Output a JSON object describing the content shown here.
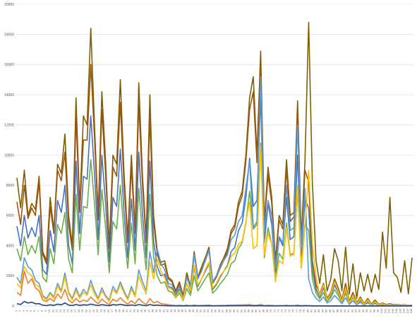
{
  "chart_data": {
    "type": "line",
    "title": "",
    "xlabel": "",
    "ylabel": "",
    "ylim": [
      0,
      20000
    ],
    "yticks": [
      0,
      2000,
      4000,
      6000,
      8000,
      10000,
      12000,
      14000,
      16000,
      18000,
      20000
    ],
    "xlim": [
      1,
      108
    ],
    "grid": "horizontal",
    "legend": "none",
    "series": [
      {
        "color": "#7f6000",
        "values": [
          8500,
          6500,
          9000,
          6000,
          6800,
          6400,
          8600,
          3600,
          3000,
          7200,
          5000,
          9400,
          8800,
          11400,
          6000,
          4000,
          13800,
          6500,
          12600,
          12000,
          18400,
          12000,
          6000,
          14200,
          9600,
          4000,
          10000,
          9400,
          15000,
          8800,
          4500,
          10000,
          5000,
          14800,
          8600,
          4500,
          14000,
          6000,
          3600,
          2900,
          3000,
          1900,
          1700,
          1000,
          1600,
          700,
          2200,
          1300,
          3600,
          1900,
          2600,
          3200,
          3900,
          1600,
          2000,
          2700,
          3200,
          3800,
          5000,
          5400,
          6900,
          7600,
          10000,
          13800,
          15200,
          10000,
          16900,
          5600,
          9200,
          7200,
          3000,
          6000,
          5400,
          9700,
          6000,
          6200,
          13600,
          4500,
          9600,
          18800,
          8200,
          3000,
          1500,
          3400,
          1000,
          1800,
          3800,
          3000,
          1000,
          3900,
          800,
          2800,
          500,
          2200,
          1000,
          2100,
          900,
          2100,
          1100,
          4900,
          2500,
          7200,
          2200,
          1900,
          900,
          3000,
          800,
          3200
        ]
      },
      {
        "color": "#9e5410",
        "values": [
          6900,
          5400,
          8000,
          5800,
          6500,
          6000,
          8200,
          3400,
          2800,
          6600,
          4800,
          9000,
          8300,
          10200,
          5400,
          3700,
          12500,
          6200,
          11000,
          11000,
          16000,
          11200,
          5700,
          13000,
          8800,
          3800,
          9200,
          8600,
          13500,
          8000,
          4200,
          9200,
          4800,
          13400,
          8000,
          4200,
          12500,
          5600,
          3400,
          2700,
          2800,
          1800,
          1600,
          900,
          1500,
          600,
          2000,
          1200,
          3400,
          1800,
          2400,
          3000,
          3700,
          1500,
          1900,
          2500,
          3000,
          3600,
          4800,
          5200,
          6600,
          7300,
          9600,
          13000,
          14200,
          9500,
          15800,
          5300,
          8700,
          6800,
          2800,
          5700,
          5100,
          9100,
          5600,
          5900,
          12800,
          4200,
          9000,
          8200,
          3000,
          1400,
          800,
          1500,
          500,
          900,
          1800,
          1200,
          400,
          1500,
          300,
          900,
          200,
          600,
          150,
          500,
          120,
          400,
          100,
          200,
          100,
          150,
          80,
          100,
          60,
          80,
          40,
          60
        ]
      },
      {
        "color": "#4472c4",
        "values": [
          5300,
          4000,
          6000,
          4500,
          5200,
          4600,
          6000,
          2400,
          2100,
          5000,
          3600,
          7000,
          6200,
          8000,
          4000,
          2800,
          9600,
          4800,
          8600,
          8400,
          12600,
          8800,
          4400,
          10000,
          6800,
          2900,
          7200,
          6600,
          10400,
          6200,
          3200,
          7100,
          3700,
          10200,
          6100,
          3200,
          9600,
          4300,
          2600,
          2000,
          2100,
          1300,
          1200,
          700,
          1100,
          450,
          1500,
          900,
          2600,
          1300,
          1800,
          2300,
          2800,
          1100,
          1400,
          1900,
          2300,
          2700,
          3600,
          3900,
          5000,
          5500,
          7200,
          9800,
          6600,
          7000,
          14000,
          4200,
          6800,
          5400,
          2200,
          4500,
          4000,
          7200,
          4400,
          4600,
          10000,
          3300,
          7100,
          6500,
          2400,
          1100,
          600,
          1200,
          400,
          700,
          1400,
          900,
          300,
          1100,
          200,
          700,
          150,
          450,
          100,
          350,
          90,
          280,
          70,
          150,
          70,
          110,
          60,
          70,
          40,
          60,
          30,
          40
        ]
      },
      {
        "color": "#70ad47",
        "values": [
          3800,
          3000,
          4600,
          3400,
          4000,
          3500,
          4600,
          1900,
          1600,
          3800,
          2800,
          5400,
          4800,
          6200,
          3100,
          2200,
          7400,
          3700,
          6600,
          6500,
          9700,
          6800,
          3400,
          7700,
          5200,
          2200,
          5600,
          5100,
          8000,
          4800,
          2500,
          5500,
          2800,
          7800,
          4700,
          2400,
          7400,
          3300,
          2000,
          1500,
          1600,
          1000,
          900,
          550,
          850,
          350,
          1150,
          700,
          2000,
          1000,
          1400,
          1800,
          2200,
          850,
          1100,
          1450,
          1750,
          2100,
          2800,
          3000,
          3800,
          4200,
          5500,
          7600,
          5100,
          5400,
          10800,
          3200,
          5200,
          4100,
          1700,
          3500,
          3100,
          5500,
          3400,
          3500,
          7700,
          2500,
          5400,
          5000,
          1800,
          850,
          450,
          900,
          300,
          550,
          1100,
          700,
          230,
          850,
          150,
          550,
          110,
          350,
          80,
          270,
          70,
          210,
          50,
          110,
          50,
          80,
          40,
          50,
          30,
          45,
          20,
          30
        ]
      },
      {
        "color": "#5b9bd5",
        "values": [
          1900,
          1500,
          3200,
          2600,
          2400,
          1700,
          1500,
          700,
          500,
          900,
          600,
          1500,
          1000,
          2200,
          900,
          500,
          1200,
          600,
          1100,
          800,
          1700,
          1000,
          500,
          1200,
          700,
          400,
          1300,
          900,
          1600,
          1000,
          500,
          1300,
          700,
          2400,
          1600,
          1000,
          3600,
          2200,
          3800,
          2800,
          2400,
          1500,
          1400,
          800,
          1300,
          500,
          1900,
          1200,
          3400,
          1800,
          2300,
          3000,
          3700,
          1600,
          2000,
          2600,
          3000,
          3400,
          4400,
          4700,
          5600,
          6000,
          7800,
          9600,
          5200,
          5600,
          15200,
          5000,
          7000,
          6000,
          2500,
          4600,
          4200,
          8000,
          5000,
          5200,
          12000,
          3800,
          7800,
          1800,
          900,
          500,
          300,
          600,
          200,
          350,
          700,
          450,
          150,
          550,
          100,
          350,
          80,
          250,
          60,
          200,
          50,
          160,
          40,
          90,
          40,
          60,
          30,
          40,
          20,
          30,
          15,
          20
        ]
      },
      {
        "color": "#ffc000",
        "values": [
          1500,
          1200,
          2600,
          2200,
          2000,
          1400,
          1300,
          600,
          400,
          800,
          500,
          1300,
          900,
          1900,
          800,
          400,
          1000,
          500,
          900,
          700,
          1400,
          800,
          400,
          1000,
          600,
          300,
          1100,
          800,
          1400,
          850,
          400,
          1100,
          600,
          2000,
          1300,
          800,
          2900,
          1800,
          3100,
          2300,
          1900,
          1200,
          1100,
          600,
          1000,
          400,
          1500,
          1000,
          2700,
          1400,
          1800,
          2400,
          2900,
          1200,
          1500,
          2000,
          2300,
          2600,
          3300,
          3500,
          4100,
          4300,
          5600,
          6900,
          3800,
          4000,
          10600,
          3400,
          4800,
          4100,
          1600,
          3000,
          2800,
          5200,
          3300,
          3400,
          8000,
          2500,
          5200,
          9000,
          4200,
          1900,
          700,
          1400,
          400,
          800,
          1600,
          1000,
          300,
          1200,
          200,
          700,
          150,
          500,
          100,
          400,
          80,
          300,
          60,
          150,
          60,
          100,
          40,
          60,
          30,
          50,
          20,
          30
        ]
      },
      {
        "color": "#ed7d31",
        "values": [
          900,
          700,
          2300,
          1500,
          1800,
          1200,
          1000,
          400,
          300,
          500,
          300,
          800,
          500,
          1100,
          400,
          200,
          500,
          250,
          400,
          300,
          600,
          350,
          150,
          450,
          250,
          100,
          450,
          300,
          550,
          300,
          120,
          350,
          150,
          500,
          250,
          100,
          500,
          200,
          300,
          150,
          120,
          80,
          60,
          30,
          50,
          20,
          50,
          30,
          60,
          30,
          40,
          50,
          60,
          20,
          30,
          40,
          40,
          50,
          60,
          60,
          70,
          70,
          80,
          90,
          50,
          50,
          100,
          30,
          50,
          40,
          20,
          30,
          30,
          50,
          30,
          30,
          60,
          20,
          40,
          30,
          20,
          10,
          10,
          10,
          5,
          5,
          10,
          5,
          5,
          5,
          5,
          5,
          5,
          5,
          5,
          5,
          5,
          5,
          5,
          5,
          5,
          5,
          5,
          5,
          5,
          5,
          5,
          5
        ]
      },
      {
        "color": "#264478",
        "values": [
          150,
          100,
          300,
          200,
          250,
          150,
          150,
          50,
          30,
          80,
          40,
          120,
          80,
          200,
          60,
          30,
          100,
          40,
          80,
          60,
          120,
          70,
          30,
          90,
          50,
          20,
          90,
          60,
          110,
          60,
          25,
          70,
          30,
          100,
          50,
          20,
          100,
          40,
          60,
          30,
          25,
          15,
          12,
          6,
          10,
          4,
          10,
          6,
          12,
          6,
          8,
          10,
          12,
          4,
          6,
          8,
          8,
          10,
          12,
          12,
          14,
          14,
          16,
          18,
          10,
          10,
          20,
          6,
          10,
          8,
          4,
          6,
          6,
          10,
          6,
          6,
          12,
          4,
          8,
          6,
          4,
          2,
          2,
          2,
          1,
          1,
          2,
          1,
          1,
          1,
          1,
          1,
          1,
          1,
          1,
          1,
          1,
          1,
          1,
          1,
          1,
          1,
          1,
          1,
          1,
          1,
          1,
          1
        ]
      }
    ]
  }
}
